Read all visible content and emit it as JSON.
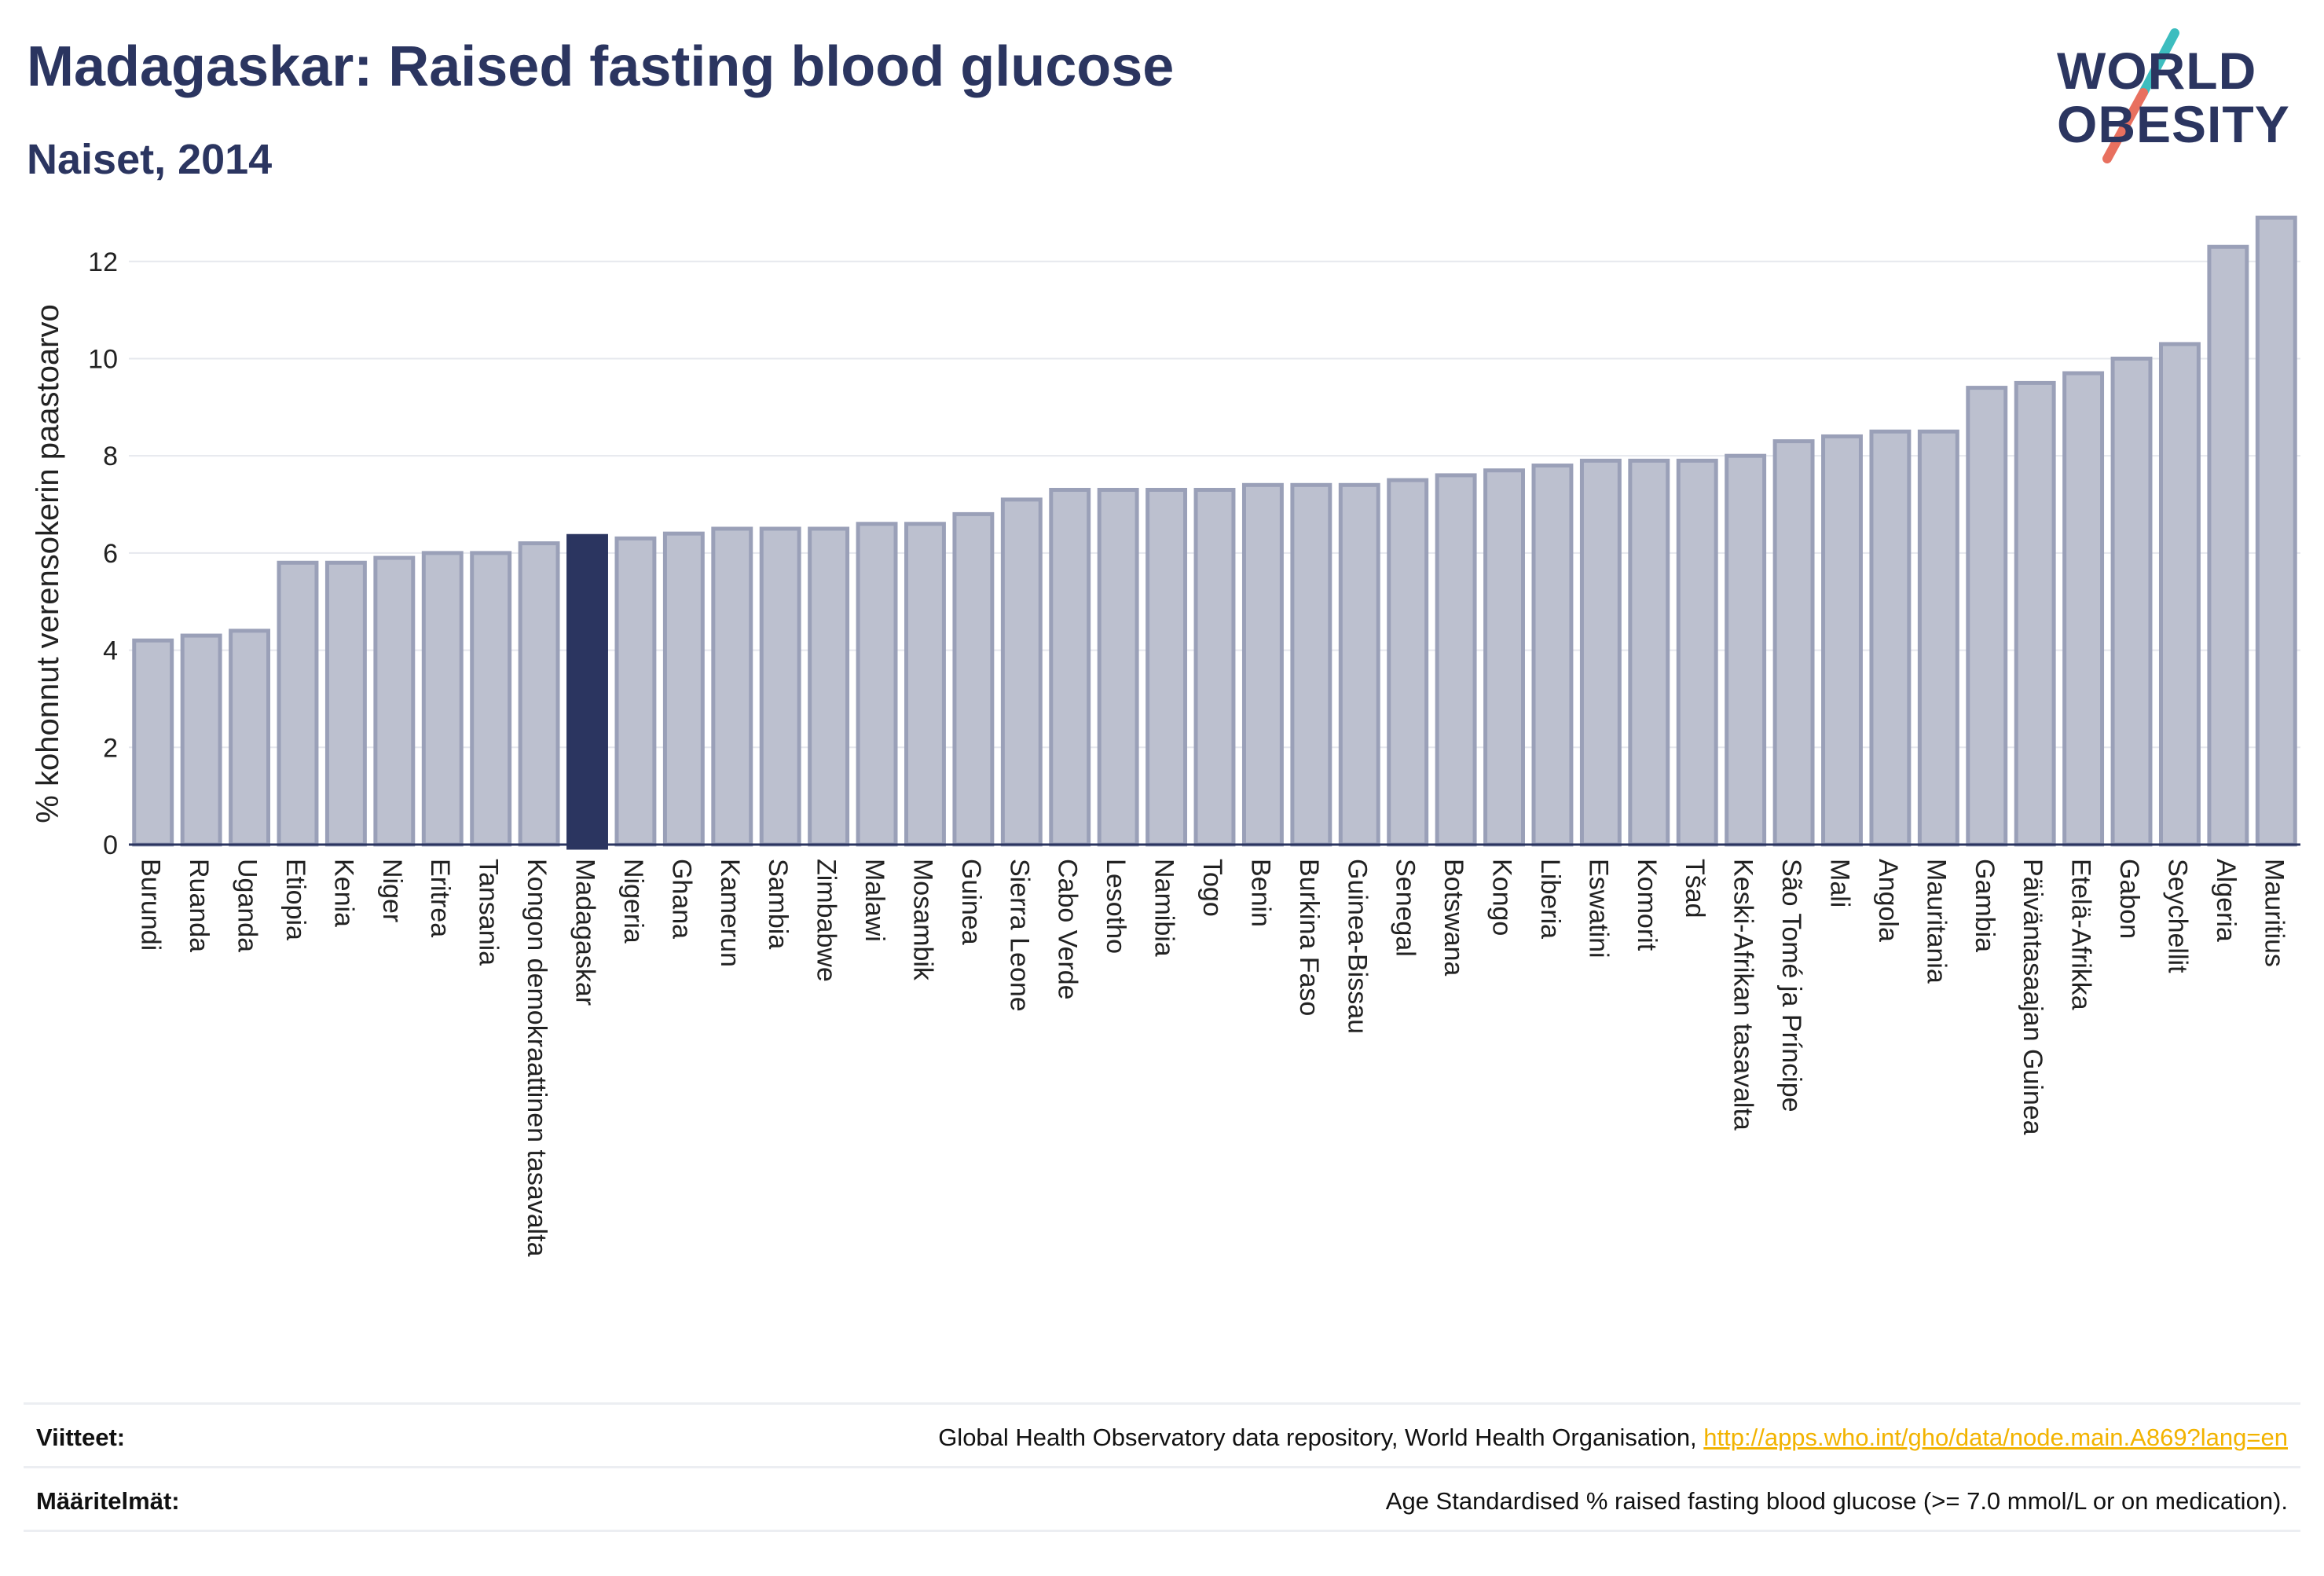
{
  "header": {
    "title": "Madagaskar: Raised fasting blood glucose",
    "subtitle": "Naiset, 2014",
    "logo_line1": "WORLD",
    "logo_line2": "OBESITY"
  },
  "colors": {
    "bar": "#bcc0cf",
    "bar_border": "#9aa0b8",
    "highlight": "#2b3560",
    "logo_teal": "#3dbdbf",
    "logo_coral": "#e8705f",
    "link": "#f2b300"
  },
  "chart_data": {
    "type": "bar",
    "title": "Madagaskar: Raised fasting blood glucose",
    "subtitle": "Naiset, 2014",
    "ylabel": "% kohonnut verensokerin paastoarvo",
    "ylim": [
      0,
      13.5
    ],
    "yticks": [
      0,
      2,
      4,
      6,
      8,
      10,
      12
    ],
    "grid": true,
    "highlight": "Madagaskar",
    "categories": [
      "Burundi",
      "Ruanda",
      "Uganda",
      "Etiopia",
      "Kenia",
      "Niger",
      "Eritrea",
      "Tansania",
      "Kongon demokraattinen tasavalta",
      "Madagaskar",
      "Nigeria",
      "Ghana",
      "Kamerun",
      "Sambia",
      "Zimbabwe",
      "Malawi",
      "Mosambik",
      "Guinea",
      "Sierra Leone",
      "Cabo Verde",
      "Lesotho",
      "Namibia",
      "Togo",
      "Benin",
      "Burkina Faso",
      "Guinea-Bissau",
      "Senegal",
      "Botswana",
      "Kongo",
      "Liberia",
      "Eswatini",
      "Komorit",
      "Tšad",
      "Keski-Afrikan tasavalta",
      "São Tomé ja Príncipe",
      "Mali",
      "Angola",
      "Mauritania",
      "Gambia",
      "Päiväntasaajan Guinea",
      "Etelä-Afrikka",
      "Gabon",
      "Seychellit",
      "Algeria",
      "Mauritius"
    ],
    "values": [
      4.2,
      4.3,
      4.4,
      5.8,
      5.8,
      5.9,
      6.0,
      6.0,
      6.2,
      6.35,
      6.3,
      6.4,
      6.5,
      6.5,
      6.5,
      6.6,
      6.6,
      6.8,
      7.1,
      7.3,
      7.3,
      7.3,
      7.3,
      7.4,
      7.4,
      7.4,
      7.5,
      7.6,
      7.7,
      7.8,
      7.9,
      7.9,
      7.9,
      8.0,
      8.3,
      8.4,
      8.5,
      8.5,
      9.4,
      9.5,
      9.7,
      10.0,
      10.3,
      12.3,
      12.9
    ]
  },
  "footer": {
    "sources_label": "Viitteet:",
    "sources_text": "Global Health Observatory data repository, World Health Organisation, ",
    "sources_link": "http://apps.who.int/gho/data/node.main.A869?lang=en",
    "definitions_label": "Määritelmät:",
    "definitions_text": "Age Standardised % raised fasting blood glucose (>= 7.0 mmol/L or on medication)."
  }
}
